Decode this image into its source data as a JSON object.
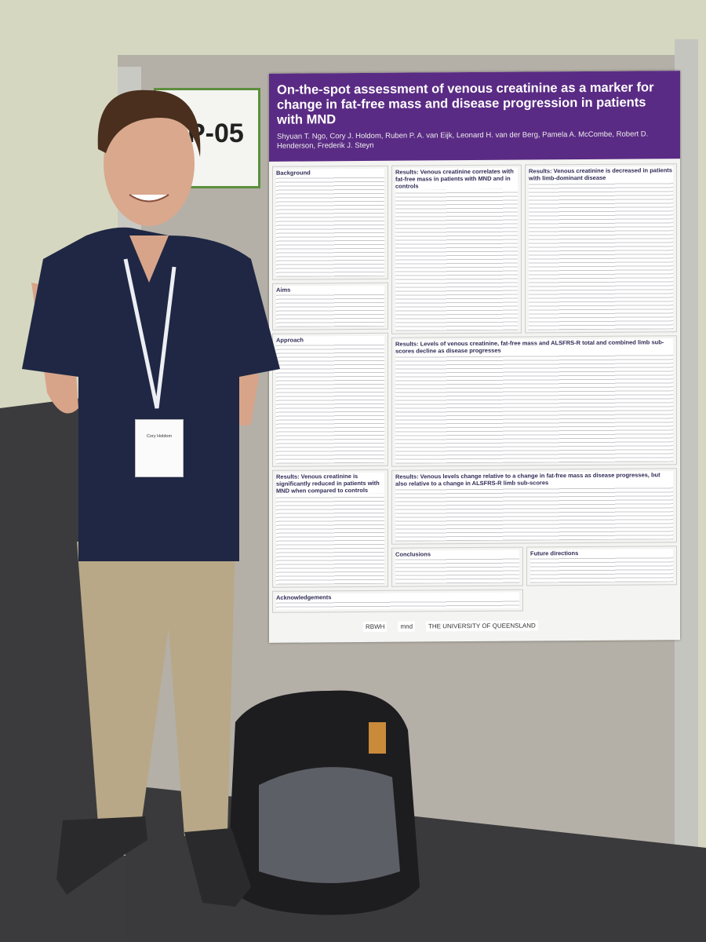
{
  "sign": {
    "code": "P-05"
  },
  "badge": {
    "name": "Cory Holdom"
  },
  "poster": {
    "title": "On-the-spot assessment of venous creatinine as a marker for change in fat-free mass and disease progression in patients with MND",
    "authors": "Shyuan T. Ngo, Cory J. Holdom, Ruben P. A. van Eijk, Leonard H. van der Berg, Pamela A. McCombe, Robert D. Henderson, Frederik J. Steyn",
    "sections": [
      {
        "heading": "Background"
      },
      {
        "heading": "Results: Venous creatinine correlates with fat-free mass in patients with MND and in controls"
      },
      {
        "heading": "Results: Venous creatinine is decreased in patients with limb-dominant disease"
      },
      {
        "heading": "Aims"
      },
      {
        "heading": "Approach"
      },
      {
        "heading": "Results: Levels of venous creatinine, fat-free mass and ALSFRS-R total and combined limb sub-scores decline as disease progresses"
      },
      {
        "heading": "Results: Venous creatinine is significantly reduced in patients with MND when compared to controls"
      },
      {
        "heading": "Results: Venous levels change relative to a change in fat-free mass as disease progresses, but also relative to a change in ALSFRS-R limb sub-scores"
      },
      {
        "heading": "Conclusions"
      },
      {
        "heading": "Future directions"
      },
      {
        "heading": "Acknowledgements"
      }
    ],
    "logos": [
      "RBWH",
      "mnd",
      "THE UNIVERSITY OF QUEENSLAND"
    ]
  }
}
